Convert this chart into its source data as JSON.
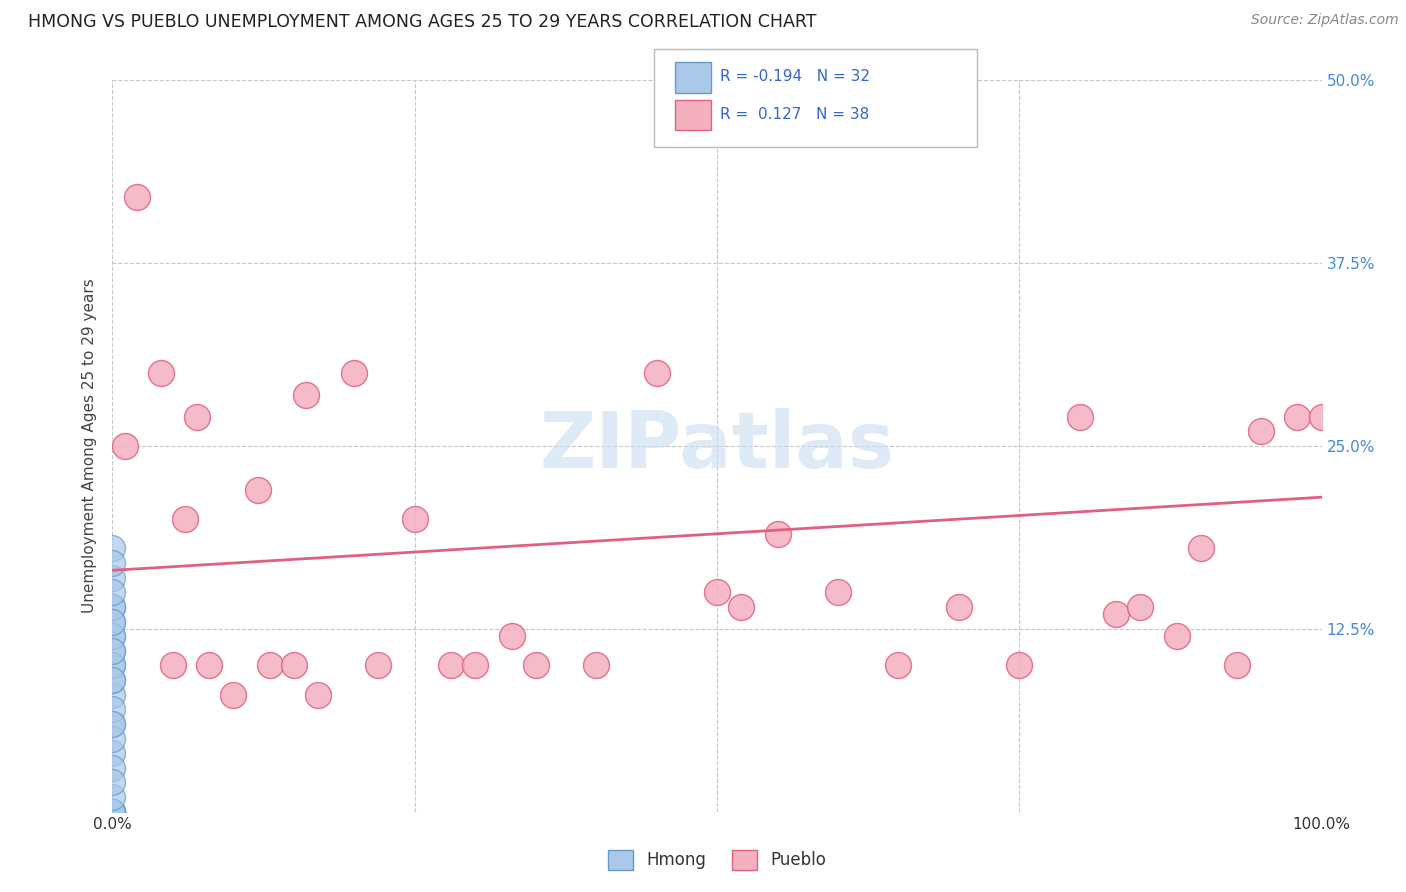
{
  "title": "HMONG VS PUEBLO UNEMPLOYMENT AMONG AGES 25 TO 29 YEARS CORRELATION CHART",
  "source": "Source: ZipAtlas.com",
  "ylabel": "Unemployment Among Ages 25 to 29 years",
  "xlim": [
    0,
    1.0
  ],
  "ylim": [
    0,
    0.5
  ],
  "ytick_positions": [
    0.0,
    0.125,
    0.25,
    0.375,
    0.5
  ],
  "ytick_labels": [
    "",
    "12.5%",
    "25.0%",
    "37.5%",
    "50.0%"
  ],
  "xtick_positions": [
    0.0,
    0.25,
    0.5,
    0.75,
    1.0
  ],
  "xtick_labels": [
    "0.0%",
    "",
    "",
    "",
    "100.0%"
  ],
  "background_color": "#ffffff",
  "grid_color": "#c8c8c8",
  "watermark": "ZIPatlas",
  "legend_hmong_R": "-0.194",
  "legend_hmong_N": "32",
  "legend_pueblo_R": "0.127",
  "legend_pueblo_N": "38",
  "hmong_fill": "#aac8e8",
  "hmong_edge": "#6699cc",
  "pueblo_fill": "#f5b0c0",
  "pueblo_edge": "#e06080",
  "pueblo_line_color": "#e06080",
  "hmong_line_color": "#6699cc",
  "hmong_x": [
    0.0,
    0.0,
    0.0,
    0.0,
    0.0,
    0.0,
    0.0,
    0.0,
    0.0,
    0.0,
    0.0,
    0.0,
    0.0,
    0.0,
    0.0,
    0.0,
    0.0,
    0.0,
    0.0,
    0.0,
    0.0,
    0.0,
    0.0,
    0.0,
    0.0,
    0.0,
    0.0,
    0.0,
    0.0,
    0.0,
    0.0,
    0.0
  ],
  "hmong_y": [
    0.0,
    0.0,
    0.0,
    0.0,
    0.0,
    0.0,
    0.0,
    0.04,
    0.06,
    0.08,
    0.09,
    0.1,
    0.11,
    0.12,
    0.13,
    0.14,
    0.16,
    0.18,
    0.01,
    0.03,
    0.05,
    0.07,
    0.1,
    0.12,
    0.14,
    0.15,
    0.02,
    0.06,
    0.09,
    0.11,
    0.13,
    0.17
  ],
  "pueblo_x": [
    0.01,
    0.02,
    0.04,
    0.05,
    0.06,
    0.07,
    0.08,
    0.1,
    0.12,
    0.13,
    0.15,
    0.16,
    0.17,
    0.2,
    0.22,
    0.25,
    0.28,
    0.3,
    0.33,
    0.35,
    0.4,
    0.45,
    0.5,
    0.52,
    0.55,
    0.6,
    0.65,
    0.7,
    0.75,
    0.8,
    0.83,
    0.85,
    0.88,
    0.9,
    0.93,
    0.95,
    0.98,
    1.0
  ],
  "pueblo_y": [
    0.25,
    0.42,
    0.3,
    0.1,
    0.2,
    0.27,
    0.1,
    0.08,
    0.22,
    0.1,
    0.1,
    0.285,
    0.08,
    0.3,
    0.1,
    0.2,
    0.1,
    0.1,
    0.12,
    0.1,
    0.1,
    0.3,
    0.15,
    0.14,
    0.19,
    0.15,
    0.1,
    0.14,
    0.1,
    0.27,
    0.135,
    0.14,
    0.12,
    0.18,
    0.1,
    0.26,
    0.27,
    0.27
  ],
  "pueblo_trend_x0": 0.0,
  "pueblo_trend_x1": 1.0,
  "pueblo_trend_y0": 0.165,
  "pueblo_trend_y1": 0.215
}
